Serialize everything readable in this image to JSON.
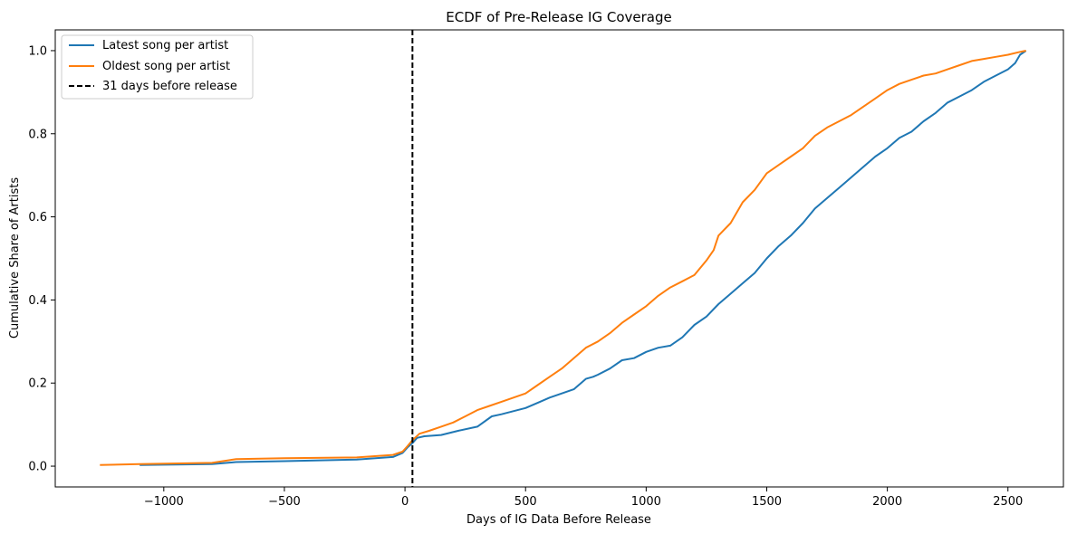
{
  "chart_data": {
    "type": "line",
    "title": "ECDF of Pre-Release IG Coverage",
    "xlabel": "Days of IG Data Before Release",
    "ylabel": "Cumulative Share of Artists",
    "xlim": [
      -1450,
      2730
    ],
    "ylim": [
      -0.05,
      1.05
    ],
    "xticks": [
      -1000,
      -500,
      0,
      500,
      1000,
      1500,
      2000,
      2500
    ],
    "xtick_labels": [
      "−1000",
      "−500",
      "0",
      "500",
      "1000",
      "1500",
      "2000",
      "2500"
    ],
    "yticks": [
      0.0,
      0.2,
      0.4,
      0.6,
      0.8,
      1.0
    ],
    "ytick_labels": [
      "0.0",
      "0.2",
      "0.4",
      "0.6",
      "0.8",
      "1.0"
    ],
    "grid": false,
    "legend_position": "top-left",
    "vline": {
      "x": 31,
      "label": "31 days before release",
      "color": "#000000",
      "style": "dashed"
    },
    "series": [
      {
        "name": "Latest song per artist",
        "color": "#1f77b4",
        "x": [
          -1100,
          -800,
          -700,
          -500,
          -200,
          -50,
          -10,
          10,
          30,
          50,
          80,
          150,
          220,
          300,
          360,
          400,
          500,
          560,
          600,
          650,
          700,
          750,
          780,
          800,
          850,
          900,
          950,
          1000,
          1050,
          1100,
          1150,
          1200,
          1250,
          1300,
          1350,
          1400,
          1450,
          1500,
          1550,
          1600,
          1650,
          1700,
          1750,
          1800,
          1850,
          1900,
          1950,
          2000,
          2050,
          2100,
          2150,
          2200,
          2250,
          2300,
          2350,
          2400,
          2450,
          2500,
          2530,
          2550,
          2575
        ],
        "y": [
          0.003,
          0.005,
          0.01,
          0.012,
          0.016,
          0.022,
          0.032,
          0.045,
          0.055,
          0.068,
          0.072,
          0.075,
          0.085,
          0.095,
          0.12,
          0.125,
          0.14,
          0.155,
          0.165,
          0.175,
          0.185,
          0.21,
          0.215,
          0.22,
          0.235,
          0.255,
          0.26,
          0.275,
          0.285,
          0.29,
          0.31,
          0.34,
          0.36,
          0.39,
          0.415,
          0.44,
          0.465,
          0.5,
          0.53,
          0.555,
          0.585,
          0.62,
          0.645,
          0.67,
          0.695,
          0.72,
          0.745,
          0.765,
          0.79,
          0.805,
          0.83,
          0.85,
          0.875,
          0.89,
          0.905,
          0.925,
          0.94,
          0.955,
          0.97,
          0.99,
          1.0
        ]
      },
      {
        "name": "Oldest song per artist",
        "color": "#ff7f0e",
        "x": [
          -1265,
          -1100,
          -800,
          -700,
          -500,
          -200,
          -50,
          -10,
          10,
          30,
          60,
          100,
          150,
          200,
          250,
          300,
          350,
          400,
          450,
          500,
          550,
          600,
          650,
          700,
          750,
          800,
          850,
          900,
          950,
          1000,
          1050,
          1100,
          1150,
          1200,
          1250,
          1280,
          1300,
          1350,
          1400,
          1450,
          1500,
          1550,
          1600,
          1650,
          1700,
          1750,
          1800,
          1850,
          1900,
          1950,
          2000,
          2050,
          2100,
          2150,
          2200,
          2250,
          2300,
          2350,
          2400,
          2450,
          2500,
          2550,
          2575
        ],
        "y": [
          0.003,
          0.005,
          0.008,
          0.017,
          0.019,
          0.021,
          0.027,
          0.035,
          0.048,
          0.062,
          0.078,
          0.085,
          0.095,
          0.105,
          0.12,
          0.135,
          0.145,
          0.155,
          0.165,
          0.175,
          0.195,
          0.215,
          0.235,
          0.26,
          0.285,
          0.3,
          0.32,
          0.345,
          0.365,
          0.385,
          0.41,
          0.43,
          0.445,
          0.46,
          0.495,
          0.52,
          0.555,
          0.585,
          0.635,
          0.665,
          0.705,
          0.725,
          0.745,
          0.765,
          0.795,
          0.815,
          0.83,
          0.845,
          0.865,
          0.885,
          0.905,
          0.92,
          0.93,
          0.94,
          0.945,
          0.955,
          0.965,
          0.975,
          0.98,
          0.985,
          0.99,
          0.997,
          1.0
        ]
      }
    ]
  }
}
